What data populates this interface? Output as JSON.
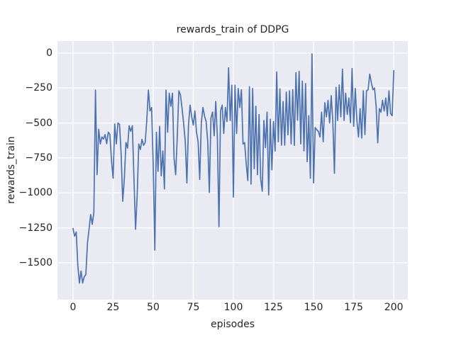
{
  "chart_data": {
    "type": "line",
    "title": "rewards_train of DDPG",
    "xlabel": "episodes",
    "ylabel": "rewards_train",
    "x_ticks": [
      0,
      25,
      50,
      75,
      100,
      125,
      150,
      175,
      200
    ],
    "y_ticks": [
      0,
      -250,
      -500,
      -750,
      -1000,
      -1250,
      -1500
    ],
    "xlim": [
      -9.7,
      208.8
    ],
    "ylim": [
      -1764,
      86
    ],
    "grid": true,
    "legend_position": "none",
    "colors": {
      "line": "#4c72b0",
      "plot_bg": "#eaeaf2",
      "grid": "#ffffff",
      "text": "#262626",
      "figure_bg": "#ffffff"
    },
    "series": [
      {
        "name": "rewards_train",
        "x_start": 0,
        "x_step": 1,
        "values": [
          -1255,
          -1310,
          -1280,
          -1520,
          -1645,
          -1560,
          -1645,
          -1600,
          -1585,
          -1360,
          -1260,
          -1155,
          -1225,
          -1140,
          -265,
          -870,
          -545,
          -650,
          -600,
          -615,
          -583,
          -648,
          -566,
          -583,
          -770,
          -895,
          -507,
          -650,
          -500,
          -510,
          -722,
          -1060,
          -900,
          -640,
          -680,
          -520,
          -560,
          -520,
          -900,
          -1260,
          -1020,
          -650,
          -690,
          -617,
          -660,
          -640,
          -480,
          -265,
          -414,
          -389,
          -800,
          -1410,
          -566,
          -846,
          -524,
          -878,
          -700,
          -972,
          -265,
          -566,
          -287,
          -380,
          -287,
          -752,
          -870,
          -600,
          -270,
          -300,
          -397,
          -507,
          -634,
          -929,
          -515,
          -372,
          -456,
          -515,
          -414,
          -566,
          -634,
          -904,
          -500,
          -389,
          -450,
          -490,
          -634,
          -997,
          -465,
          -422,
          -591,
          -346,
          -600,
          -1242,
          -414,
          -372,
          -575,
          -389,
          -490,
          -105,
          -482,
          -230,
          -1030,
          -230,
          -575,
          -253,
          -389,
          -262,
          -651,
          -640,
          -793,
          -912,
          -240,
          -937,
          -253,
          -827,
          -380,
          -870,
          -440,
          -900,
          -988,
          -482,
          -676,
          -422,
          -1015,
          -473,
          -835,
          -490,
          -701,
          -135,
          -634,
          -255,
          -659,
          -346,
          -659,
          -279,
          -585,
          -270,
          -650,
          -262,
          -660,
          -140,
          -480,
          -130,
          -650,
          -200,
          -700,
          -218,
          -777,
          -448,
          -895,
          -5,
          -929,
          -532,
          -549,
          -560,
          -600,
          -422,
          -634,
          -355,
          -456,
          -338,
          -500,
          -304,
          -491,
          -860,
          -245,
          -482,
          -228,
          -456,
          -114,
          -482,
          -287,
          -439,
          -321,
          -498,
          -110,
          -524,
          -253,
          -482,
          -600,
          -397,
          -608,
          -270,
          -583,
          -270,
          -262,
          -150,
          -211,
          -262,
          -250,
          -380,
          -642,
          -397,
          -422,
          -338,
          -414,
          -321,
          -448,
          -270,
          -432,
          -448,
          -125
        ]
      }
    ]
  }
}
